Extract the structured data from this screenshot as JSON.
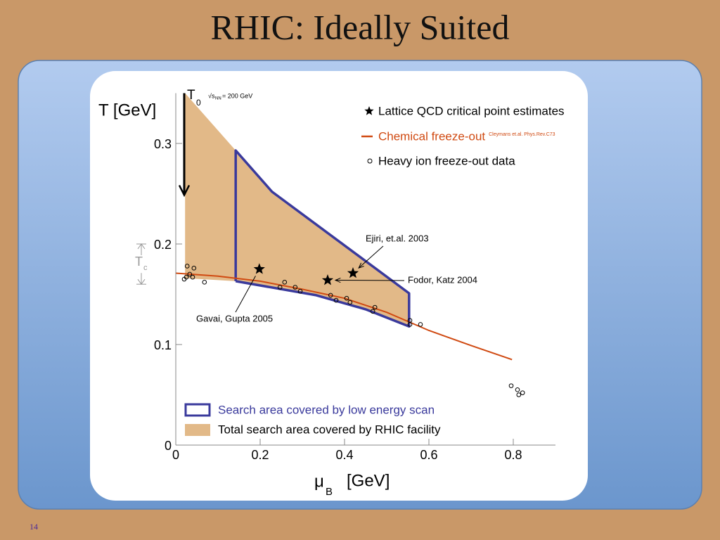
{
  "slide": {
    "title": "RHIC: Ideally Suited",
    "page_number": "14"
  },
  "chart_data": {
    "type": "scatter",
    "ylabel": "T [GeV]",
    "xlabel": {
      "symbol": "μ",
      "subscript": "B",
      "unit": "[GeV]"
    },
    "xlim": [
      0,
      0.9
    ],
    "ylim": [
      0,
      0.35
    ],
    "xticks": [
      0,
      0.2,
      0.4,
      0.6,
      0.8
    ],
    "yticks": [
      0,
      0.1,
      0.2,
      0.3
    ],
    "series": [
      {
        "name": "Lattice QCD critical point estimates",
        "marker": "star",
        "color": "#000000",
        "x": [
          0.198,
          0.36,
          0.42
        ],
        "values": [
          0.175,
          0.164,
          0.171
        ]
      },
      {
        "name": "Chemical freeze-out",
        "reference": "Cleymans et.al. Phys.Rev.C73",
        "marker": "line",
        "color": "#d04a12",
        "x": [
          0,
          0.1,
          0.2,
          0.3,
          0.4,
          0.5,
          0.6,
          0.7,
          0.797
        ],
        "values": [
          0.171,
          0.168,
          0.163,
          0.155,
          0.146,
          0.132,
          0.114,
          0.099,
          0.085
        ]
      },
      {
        "name": "Heavy ion freeze-out data",
        "marker": "circle",
        "color": "#000000",
        "x": [
          0.027,
          0.025,
          0.033,
          0.043,
          0.04,
          0.02,
          0.068,
          0.247,
          0.258,
          0.283,
          0.295,
          0.367,
          0.38,
          0.405,
          0.413,
          0.472,
          0.467,
          0.555,
          0.555,
          0.58,
          0.795,
          0.81,
          0.813,
          0.822
        ],
        "values": [
          0.178,
          0.167,
          0.17,
          0.176,
          0.167,
          0.165,
          0.162,
          0.157,
          0.162,
          0.157,
          0.153,
          0.149,
          0.144,
          0.146,
          0.142,
          0.137,
          0.133,
          0.12,
          0.124,
          0.12,
          0.059,
          0.055,
          0.05,
          0.052
        ]
      },
      {
        "name": "Search area covered by low energy scan",
        "marker": "outline",
        "color": "#3a3a9c",
        "x": [
          0.142,
          0.142,
          0.228,
          0.553,
          0.553,
          0.45,
          0.333,
          0.142
        ],
        "values": [
          0.163,
          0.293,
          0.252,
          0.151,
          0.118,
          0.135,
          0.149,
          0.163
        ]
      },
      {
        "name": "Total search area covered by RHIC facility",
        "marker": "area",
        "color": "#e2b988",
        "x": [
          0.022,
          0.142,
          0.228,
          0.553,
          0.553,
          0.45,
          0.333,
          0.142,
          0.022
        ],
        "values": [
          0.35,
          0.293,
          0.252,
          0.151,
          0.118,
          0.135,
          0.149,
          0.163,
          0.166
        ]
      }
    ],
    "annotations": [
      "Gavai, Gupta 2005",
      "Fodor, Katz 2004",
      "Ejiri, et.al. 2003"
    ],
    "t0": {
      "symbol": "T",
      "subscript": "0",
      "energy_symbol": "√s",
      "energy_subscript": "NN",
      "energy": "= 200 GeV",
      "x": 0.02,
      "from": 0.35,
      "to": 0.25
    },
    "tc": {
      "symbol": "T",
      "subscript": "c",
      "range": [
        0.16,
        0.2
      ]
    }
  }
}
